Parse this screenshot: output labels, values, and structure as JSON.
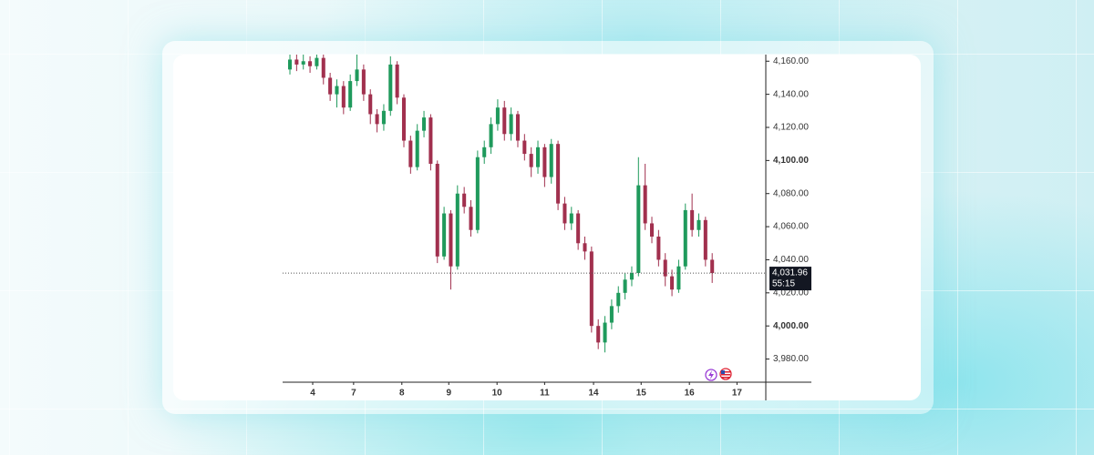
{
  "chart_data": {
    "type": "candlestick",
    "up_color": "#1f9a5c",
    "down_color": "#a1304e",
    "x": [
      0,
      1,
      2,
      3,
      4,
      5,
      6,
      7,
      8,
      9,
      10,
      11,
      12,
      13,
      14,
      15,
      16,
      17,
      18,
      19,
      20,
      21,
      22,
      23,
      24,
      25,
      26,
      27,
      28,
      29,
      30,
      31,
      32,
      33,
      34,
      35,
      36,
      37,
      38,
      39,
      40,
      41,
      42,
      43,
      44,
      45,
      46,
      47,
      48,
      49,
      50,
      51,
      52,
      53,
      54,
      55,
      56,
      57,
      58,
      59,
      60,
      61,
      62,
      63
    ],
    "open": [
      4155,
      4161,
      4158,
      4160,
      4157,
      4162,
      4150,
      4140,
      4145,
      4132,
      4148,
      4155,
      4140,
      4128,
      4122,
      4130,
      4158,
      4138,
      4112,
      4096,
      4118,
      4126,
      4098,
      4042,
      4068,
      4036,
      4080,
      4072,
      4058,
      4102,
      4108,
      4122,
      4132,
      4116,
      4128,
      4112,
      4104,
      4096,
      4108,
      4090,
      4110,
      4074,
      4062,
      4068,
      4050,
      4045,
      4000,
      3990,
      4002,
      4012,
      4020,
      4028,
      4032,
      4085,
      4062,
      4054,
      4040,
      4030,
      4022,
      4036,
      4070,
      4058,
      4064,
      4040
    ],
    "high": [
      4164,
      4164,
      4164,
      4163,
      4165,
      4164,
      4153,
      4149,
      4148,
      4152,
      4164,
      4158,
      4143,
      4131,
      4134,
      4163,
      4160,
      4140,
      4115,
      4122,
      4130,
      4128,
      4100,
      4072,
      4070,
      4085,
      4084,
      4076,
      4106,
      4112,
      4126,
      4137,
      4136,
      4132,
      4130,
      4116,
      4108,
      4112,
      4110,
      4113,
      4112,
      4078,
      4072,
      4070,
      4054,
      4048,
      4004,
      4006,
      4016,
      4024,
      4032,
      4036,
      4102,
      4098,
      4066,
      4058,
      4044,
      4034,
      4040,
      4074,
      4080,
      4068,
      4066,
      4044
    ],
    "low": [
      4152,
      4154,
      4155,
      4153,
      4155,
      4146,
      4136,
      4132,
      4128,
      4130,
      4145,
      4136,
      4122,
      4117,
      4118,
      4127,
      4134,
      4108,
      4092,
      4094,
      4114,
      4094,
      4038,
      4040,
      4022,
      4034,
      4068,
      4054,
      4056,
      4098,
      4104,
      4118,
      4112,
      4112,
      4108,
      4100,
      4090,
      4092,
      4084,
      4086,
      4070,
      4058,
      4058,
      4046,
      4040,
      3996,
      3986,
      3984,
      3998,
      4008,
      4016,
      4024,
      4030,
      4058,
      4050,
      4036,
      4024,
      4018,
      4020,
      4034,
      4054,
      4054,
      4036,
      4026
    ],
    "close": [
      4161,
      4158,
      4160,
      4157,
      4162,
      4150,
      4140,
      4145,
      4132,
      4148,
      4155,
      4140,
      4128,
      4122,
      4130,
      4158,
      4138,
      4112,
      4096,
      4118,
      4126,
      4098,
      4042,
      4068,
      4036,
      4080,
      4072,
      4058,
      4102,
      4108,
      4122,
      4132,
      4116,
      4128,
      4112,
      4104,
      4096,
      4108,
      4090,
      4110,
      4074,
      4062,
      4068,
      4050,
      4045,
      4000,
      3990,
      4002,
      4012,
      4020,
      4028,
      4032,
      4085,
      4062,
      4054,
      4040,
      4030,
      4022,
      4036,
      4070,
      4058,
      4064,
      4040,
      4031.96
    ],
    "xlim": [
      -1.09,
      71.0
    ],
    "xticks": [
      {
        "value": 3.4,
        "label": "4"
      },
      {
        "value": 9.5,
        "label": "7"
      },
      {
        "value": 16.7,
        "label": "8"
      },
      {
        "value": 23.7,
        "label": "9"
      },
      {
        "value": 30.9,
        "label": "10"
      },
      {
        "value": 38.0,
        "label": "11"
      },
      {
        "value": 45.3,
        "label": "14"
      },
      {
        "value": 52.4,
        "label": "15"
      },
      {
        "value": 59.6,
        "label": "16"
      },
      {
        "value": 66.7,
        "label": "17"
      }
    ],
    "ylim": [
      3966,
      4164
    ],
    "yticks": [
      {
        "value": 3980,
        "label": "3,980.00"
      },
      {
        "value": 4000,
        "label": "4,000.00"
      },
      {
        "value": 4020,
        "label": "4,020.00"
      },
      {
        "value": 4040,
        "label": "4,040.00"
      },
      {
        "value": 4060,
        "label": "4,060.00"
      },
      {
        "value": 4080,
        "label": "4,080.00"
      },
      {
        "value": 4100,
        "label": "4,100.00"
      },
      {
        "value": 4120,
        "label": "4,120.00"
      },
      {
        "value": 4140,
        "label": "4,140.00"
      },
      {
        "value": 4160,
        "label": "4,160.00"
      }
    ],
    "bold_yticks": [
      4000,
      4100
    ],
    "last_price": {
      "value": 4031.96,
      "label": "4,031.96"
    },
    "countdown": "55:15"
  }
}
